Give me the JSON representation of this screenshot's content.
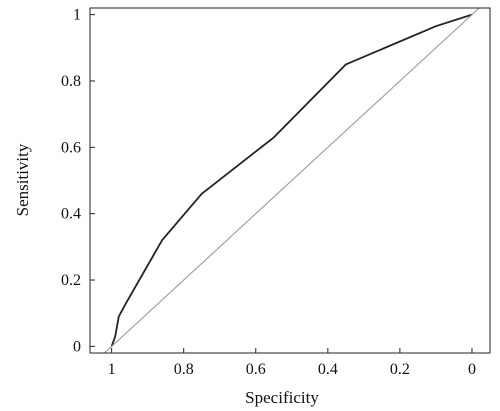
{
  "chart_data": {
    "type": "line",
    "title": "",
    "xlabel": "Specificity",
    "ylabel": "Sensitivity",
    "x_reversed": true,
    "xlim": [
      1.06,
      -0.05
    ],
    "ylim": [
      -0.02,
      1.02
    ],
    "xticks": [
      1,
      0.8,
      0.6,
      0.4,
      0.2,
      0
    ],
    "xtick_labels": [
      "1",
      "0.8",
      "0.6",
      "0.4",
      "0.2",
      "0"
    ],
    "yticks": [
      0,
      0.2,
      0.4,
      0.6,
      0.8,
      1
    ],
    "ytick_labels": [
      "0",
      "0.2",
      "0.4",
      "0.6",
      "0.8",
      "1"
    ],
    "grid": false,
    "legend": "none",
    "series": [
      {
        "role": "roc-curve",
        "color": "#222222",
        "x": [
          1.0,
          0.99,
          0.98,
          0.96,
          0.86,
          0.75,
          0.55,
          0.35,
          0.1,
          0.0
        ],
        "y": [
          0.0,
          0.03,
          0.09,
          0.13,
          0.32,
          0.46,
          0.63,
          0.85,
          0.965,
          1.0
        ]
      },
      {
        "role": "reference-diagonal",
        "color": "#9a9a9a",
        "x": [
          1.05,
          -0.05
        ],
        "y": [
          -0.05,
          1.05
        ]
      }
    ]
  }
}
